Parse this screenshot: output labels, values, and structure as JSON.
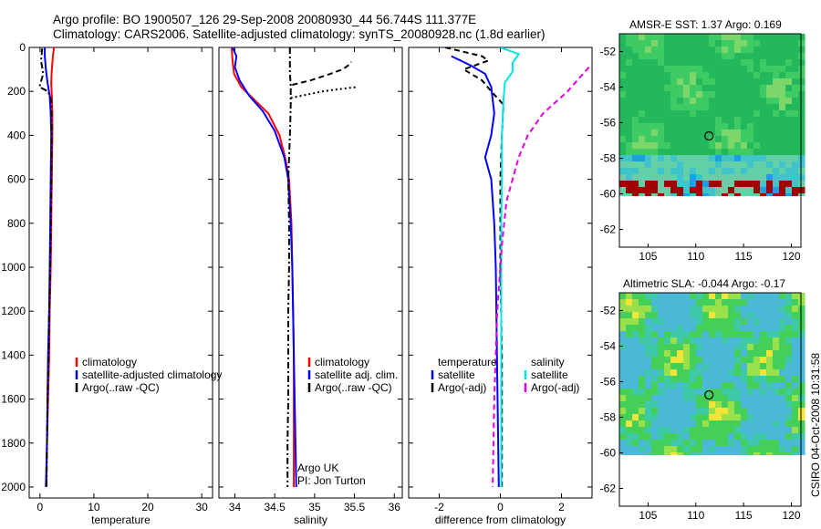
{
  "header": {
    "line1": "Argo profile: BO 1900507_126 29-Sep-2008 20080930_44 56.744S 111.377E",
    "line2": "Climatology: CARS2006. Satellite-adjusted climatology: synTS_20080928.nc (1.8d earlier)"
  },
  "stamp": "CSIRO 04-Oct-2008 10:31:58",
  "colors": {
    "climatology": "#ff0000",
    "satellite": "#0000ff",
    "argo": "#000000",
    "salinity_satellite": "#00e5e5",
    "salinity_argo": "#e000e0",
    "map_missing": "#ffffff",
    "map_land_dark": "#a00000"
  },
  "chart_data": [
    {
      "type": "line",
      "panel": "temperature",
      "xlabel": "temperature",
      "ylabel": "",
      "xlim": [
        -2,
        32
      ],
      "ylim": [
        2050,
        0
      ],
      "xticks": [
        0,
        10,
        20,
        30
      ],
      "yticks": [
        0,
        200,
        400,
        600,
        800,
        1000,
        1200,
        1400,
        1600,
        1800,
        2000
      ],
      "legend": [
        "climatology",
        "satellite-adjusted climatology",
        "Argo(..raw -QC)"
      ],
      "series": [
        {
          "name": "climatology",
          "color": "#ff0000",
          "style": "solid",
          "points": [
            [
              2.6,
              0
            ],
            [
              2.4,
              40
            ],
            [
              2.2,
              100
            ],
            [
              2.1,
              160
            ],
            [
              2.2,
              220
            ],
            [
              2.3,
              300
            ],
            [
              2.3,
              400
            ],
            [
              2.2,
              600
            ],
            [
              2.1,
              800
            ],
            [
              2.0,
              1000
            ],
            [
              1.8,
              1200
            ],
            [
              1.7,
              1400
            ],
            [
              1.5,
              1600
            ],
            [
              1.3,
              1800
            ],
            [
              1.2,
              2000
            ]
          ]
        },
        {
          "name": "satellite-adjusted climatology",
          "color": "#0000ff",
          "style": "solid",
          "points": [
            [
              0.9,
              0
            ],
            [
              0.9,
              40
            ],
            [
              1.1,
              100
            ],
            [
              1.4,
              160
            ],
            [
              1.8,
              220
            ],
            [
              2.0,
              300
            ],
            [
              2.1,
              400
            ],
            [
              2.0,
              600
            ],
            [
              1.9,
              800
            ],
            [
              1.8,
              1000
            ],
            [
              1.7,
              1200
            ],
            [
              1.5,
              1400
            ],
            [
              1.4,
              1600
            ],
            [
              1.3,
              1800
            ],
            [
              1.1,
              2000
            ]
          ]
        },
        {
          "name": "Argo(..raw -QC)",
          "color": "#000000",
          "style": "dashdot",
          "points": [
            [
              0.4,
              5
            ],
            [
              0.2,
              60
            ],
            [
              0.6,
              120
            ],
            [
              -0.1,
              180
            ],
            [
              1.5,
              200
            ],
            [
              2.1,
              240
            ],
            [
              2.2,
              400
            ],
            [
              2.1,
              600
            ],
            [
              2.0,
              800
            ],
            [
              1.9,
              1000
            ],
            [
              1.7,
              1200
            ],
            [
              1.6,
              1400
            ],
            [
              1.4,
              1600
            ],
            [
              1.3,
              1800
            ],
            [
              1.2,
              2000
            ]
          ]
        }
      ]
    },
    {
      "type": "line",
      "panel": "salinity",
      "xlabel": "salinity",
      "ylabel": "",
      "xlim": [
        33.8,
        36.1
      ],
      "ylim": [
        2050,
        0
      ],
      "xticks": [
        34,
        34.5,
        35,
        35.5,
        36
      ],
      "legend": [
        "climatology",
        "satellite adj. clim.",
        "Argo(..raw -QC)"
      ],
      "annotations": [
        "Argo UK",
        "PI: Jon Turton"
      ],
      "series": [
        {
          "name": "climatology",
          "color": "#ff0000",
          "style": "solid",
          "points": [
            [
              33.96,
              0
            ],
            [
              33.97,
              60
            ],
            [
              33.99,
              120
            ],
            [
              34.08,
              180
            ],
            [
              34.25,
              240
            ],
            [
              34.42,
              300
            ],
            [
              34.56,
              400
            ],
            [
              34.63,
              500
            ],
            [
              34.68,
              600
            ],
            [
              34.71,
              800
            ],
            [
              34.72,
              1000
            ],
            [
              34.73,
              1200
            ],
            [
              34.74,
              1400
            ],
            [
              34.74,
              1600
            ],
            [
              34.74,
              1800
            ],
            [
              34.74,
              2000
            ]
          ]
        },
        {
          "name": "satellite adj. clim.",
          "color": "#0000ff",
          "style": "solid",
          "points": [
            [
              33.97,
              0
            ],
            [
              34.02,
              40
            ],
            [
              34.0,
              90
            ],
            [
              34.06,
              150
            ],
            [
              34.18,
              220
            ],
            [
              34.35,
              290
            ],
            [
              34.5,
              380
            ],
            [
              34.62,
              500
            ],
            [
              34.67,
              600
            ],
            [
              34.7,
              800
            ],
            [
              34.72,
              1000
            ],
            [
              34.73,
              1200
            ],
            [
              34.74,
              1400
            ],
            [
              34.75,
              1600
            ],
            [
              34.76,
              1800
            ],
            [
              34.77,
              2000
            ]
          ]
        },
        {
          "name": "Argo(..raw -QC)",
          "color": "#000000",
          "style": "dashdot",
          "points": [
            [
              34.69,
              0
            ],
            [
              34.69,
              60
            ],
            [
              34.69,
              120
            ],
            [
              34.7,
              170
            ],
            [
              34.7,
              200
            ],
            [
              34.7,
              260
            ],
            [
              34.69,
              400
            ],
            [
              34.67,
              600
            ],
            [
              34.68,
              800
            ],
            [
              34.68,
              1000
            ],
            [
              34.67,
              1200
            ],
            [
              34.67,
              1400
            ],
            [
              34.67,
              1600
            ],
            [
              34.66,
              1800
            ],
            [
              34.66,
              2000
            ]
          ]
        },
        {
          "name": "",
          "color": "#000000",
          "style": "dotted",
          "points": [
            [
              34.7,
              230
            ],
            [
              34.9,
              215
            ],
            [
              35.1,
              200
            ],
            [
              35.3,
              190
            ],
            [
              35.53,
              180
            ]
          ]
        },
        {
          "name": "",
          "color": "#000000",
          "style": "dashed",
          "points": [
            [
              34.72,
              170
            ],
            [
              34.95,
              150
            ],
            [
              35.2,
              120
            ],
            [
              35.35,
              100
            ],
            [
              35.43,
              80
            ],
            [
              35.46,
              65
            ]
          ]
        }
      ]
    },
    {
      "type": "line",
      "panel": "difference",
      "xlabel": "difference from climatology",
      "ylabel": "",
      "xlim": [
        -3,
        3
      ],
      "ylim": [
        2050,
        0
      ],
      "xticks": [
        -2,
        0,
        2
      ],
      "legend_left": {
        "title": "temperature",
        "items": [
          "satellite",
          "Argo(-adj)"
        ]
      },
      "legend_right": {
        "title": "salinity",
        "items": [
          "satellite",
          "Argo(-adj)"
        ]
      },
      "series": [
        {
          "name": "temperature satellite",
          "color": "#0000ff",
          "style": "solid",
          "points": [
            [
              -1.6,
              40
            ],
            [
              -1.0,
              80
            ],
            [
              -0.5,
              120
            ],
            [
              -0.3,
              180
            ],
            [
              -0.2,
              300
            ],
            [
              -0.3,
              400
            ],
            [
              -0.5,
              500
            ],
            [
              -0.3,
              600
            ],
            [
              -0.2,
              800
            ],
            [
              -0.15,
              1000
            ],
            [
              -0.1,
              1500
            ],
            [
              -0.05,
              2000
            ]
          ]
        },
        {
          "name": "temperature Argo(-adj)",
          "color": "#000000",
          "style": "dashed",
          "points": [
            [
              -1.8,
              0
            ],
            [
              -0.6,
              40
            ],
            [
              -0.4,
              60
            ],
            [
              -1.2,
              100
            ],
            [
              -0.6,
              150
            ],
            [
              -0.3,
              200
            ],
            [
              0.1,
              260
            ],
            [
              0.05,
              400
            ],
            [
              0.0,
              600
            ],
            [
              0.0,
              800
            ],
            [
              0.0,
              1000
            ],
            [
              0.05,
              1400
            ],
            [
              0.05,
              1800
            ],
            [
              0.05,
              2000
            ]
          ]
        },
        {
          "name": "salinity satellite",
          "color": "#00e5e5",
          "style": "solid",
          "points": [
            [
              0.0,
              0
            ],
            [
              0.6,
              30
            ],
            [
              0.4,
              70
            ],
            [
              0.4,
              110
            ],
            [
              0.15,
              160
            ],
            [
              0.1,
              240
            ],
            [
              0.05,
              400
            ],
            [
              0.05,
              600
            ],
            [
              0.03,
              800
            ],
            [
              0.03,
              1000
            ],
            [
              0.03,
              1500
            ],
            [
              0.03,
              2000
            ]
          ]
        },
        {
          "name": "salinity Argo(-adj)",
          "color": "#e000e0",
          "style": "dashed",
          "points": [
            [
              2.9,
              90
            ],
            [
              2.2,
              200
            ],
            [
              1.4,
              300
            ],
            [
              0.9,
              400
            ],
            [
              0.6,
              500
            ],
            [
              0.2,
              700
            ],
            [
              0.05,
              900
            ],
            [
              -0.1,
              1200
            ],
            [
              -0.2,
              1600
            ],
            [
              -0.25,
              2000
            ]
          ]
        }
      ]
    },
    {
      "type": "heatmap",
      "panel": "AMSR-E SST",
      "title": "AMSR-E SST: 1.37 Argo: 0.169",
      "xlim": [
        102,
        121
      ],
      "ylim": [
        -63,
        -51
      ],
      "xticks": [
        105,
        110,
        115,
        120
      ],
      "yticks": [
        -52,
        -54,
        -56,
        -58,
        -60,
        -62
      ],
      "argo_position": {
        "lon": 111.377,
        "lat": -56.744
      }
    },
    {
      "type": "heatmap",
      "panel": "Altimetric SLA",
      "title": "Altimetric SLA: -0.044 Argo: -0.17",
      "xlim": [
        102,
        121
      ],
      "ylim": [
        -63,
        -51
      ],
      "xticks": [
        105,
        110,
        115,
        120
      ],
      "yticks": [
        -52,
        -54,
        -56,
        -58,
        -60,
        -62
      ],
      "argo_position": {
        "lon": 111.377,
        "lat": -56.744
      }
    }
  ]
}
